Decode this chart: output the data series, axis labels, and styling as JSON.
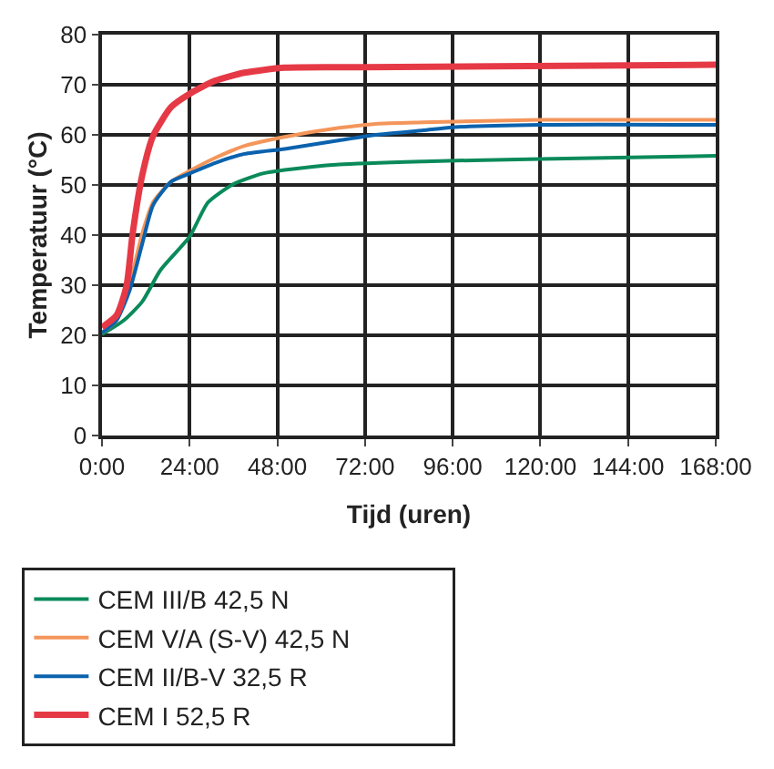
{
  "chart_data": {
    "type": "line",
    "xlabel": "Tijd (uren)",
    "ylabel": "Temperatuur (°C)",
    "xlim": [
      0,
      168
    ],
    "xticks": [
      {
        "value": 0,
        "label": "0:00"
      },
      {
        "value": 24,
        "label": "24:00"
      },
      {
        "value": 48,
        "label": "48:00"
      },
      {
        "value": 72,
        "label": "72:00"
      },
      {
        "value": 96,
        "label": "96:00"
      },
      {
        "value": 120,
        "label": "120:00"
      },
      {
        "value": 144,
        "label": "144:00"
      },
      {
        "value": 168,
        "label": "168:00"
      }
    ],
    "ylim": [
      0,
      80
    ],
    "yticks": [
      0,
      10,
      20,
      30,
      40,
      50,
      60,
      70,
      80
    ],
    "grid": true,
    "legend": "bottom",
    "marker": "none",
    "line_style": "solid",
    "series": [
      {
        "name": "CEM III/B 42,5 N",
        "color": "#0a8a5a",
        "x": [
          0,
          6,
          11,
          16,
          24,
          29,
          36,
          44,
          50,
          65,
          88,
          120,
          168
        ],
        "values": [
          20.2,
          23,
          26.7,
          33,
          39.7,
          46.5,
          50.2,
          52.3,
          53,
          54.1,
          54.7,
          55.2,
          55.8
        ]
      },
      {
        "name": "CEM V/A (S-V) 42,5 N",
        "color": "#f4955a",
        "x": [
          0,
          4,
          7.5,
          11,
          14,
          19,
          24,
          31,
          39,
          50,
          65,
          75,
          88,
          120,
          168
        ],
        "values": [
          20.5,
          23,
          30,
          40.3,
          46.6,
          50.7,
          52.8,
          55.4,
          57.8,
          59.6,
          61.4,
          62.2,
          62.5,
          63,
          63
        ]
      },
      {
        "name": "CEM II/B-V 32,5 R",
        "color": "#0b62ad",
        "x": [
          0,
          4,
          7.5,
          11,
          14,
          19,
          24,
          31,
          39,
          50,
          65,
          75,
          88,
          96,
          120,
          168
        ],
        "values": [
          20.5,
          23,
          28.8,
          38.2,
          46,
          50.7,
          52.3,
          54.4,
          56.2,
          57.2,
          58.9,
          60,
          60.9,
          61.5,
          62,
          62
        ]
      },
      {
        "name": "CEM I 52,5 R",
        "color": "#e63946",
        "x": [
          0,
          4,
          6.7,
          8.4,
          11,
          14,
          19,
          24,
          31,
          39,
          50,
          72,
          168
        ],
        "values": [
          21.6,
          24,
          29.8,
          40.3,
          51.9,
          59.8,
          65.6,
          68.2,
          70.8,
          72.4,
          73.4,
          73.5,
          74
        ]
      }
    ]
  }
}
